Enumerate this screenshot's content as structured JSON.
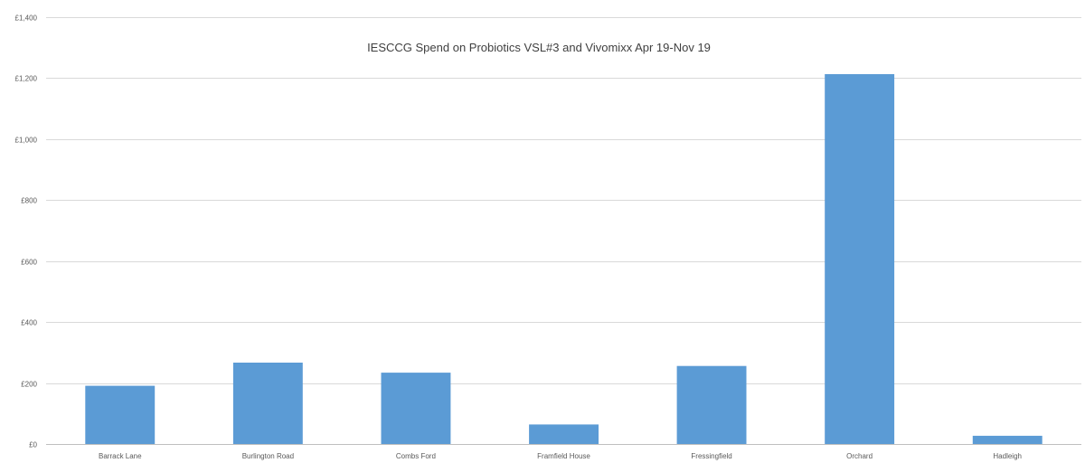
{
  "chart_data": {
    "type": "bar",
    "title": "IESCCG Spend on Probiotics VSL#3 and Vivomixx Apr 19-Nov 19",
    "xlabel": "",
    "ylabel": "",
    "categories": [
      "Barrack Lane",
      "Burlington Road",
      "Combs Ford",
      "Framfield House",
      "Fressingfield",
      "Orchard",
      "Hadleigh"
    ],
    "values": [
      191,
      267,
      234,
      64,
      256,
      1213,
      27
    ],
    "ylim": [
      0,
      1400
    ],
    "yticks": [
      0,
      200,
      400,
      600,
      800,
      1000,
      1200,
      1400
    ],
    "ytick_labels": [
      "£0",
      "£200",
      "£400",
      "£600",
      "£800",
      "£1,000",
      "£1,200",
      "£1,400"
    ],
    "grid": true,
    "legend": "none",
    "bar_color": "#5b9bd5"
  }
}
